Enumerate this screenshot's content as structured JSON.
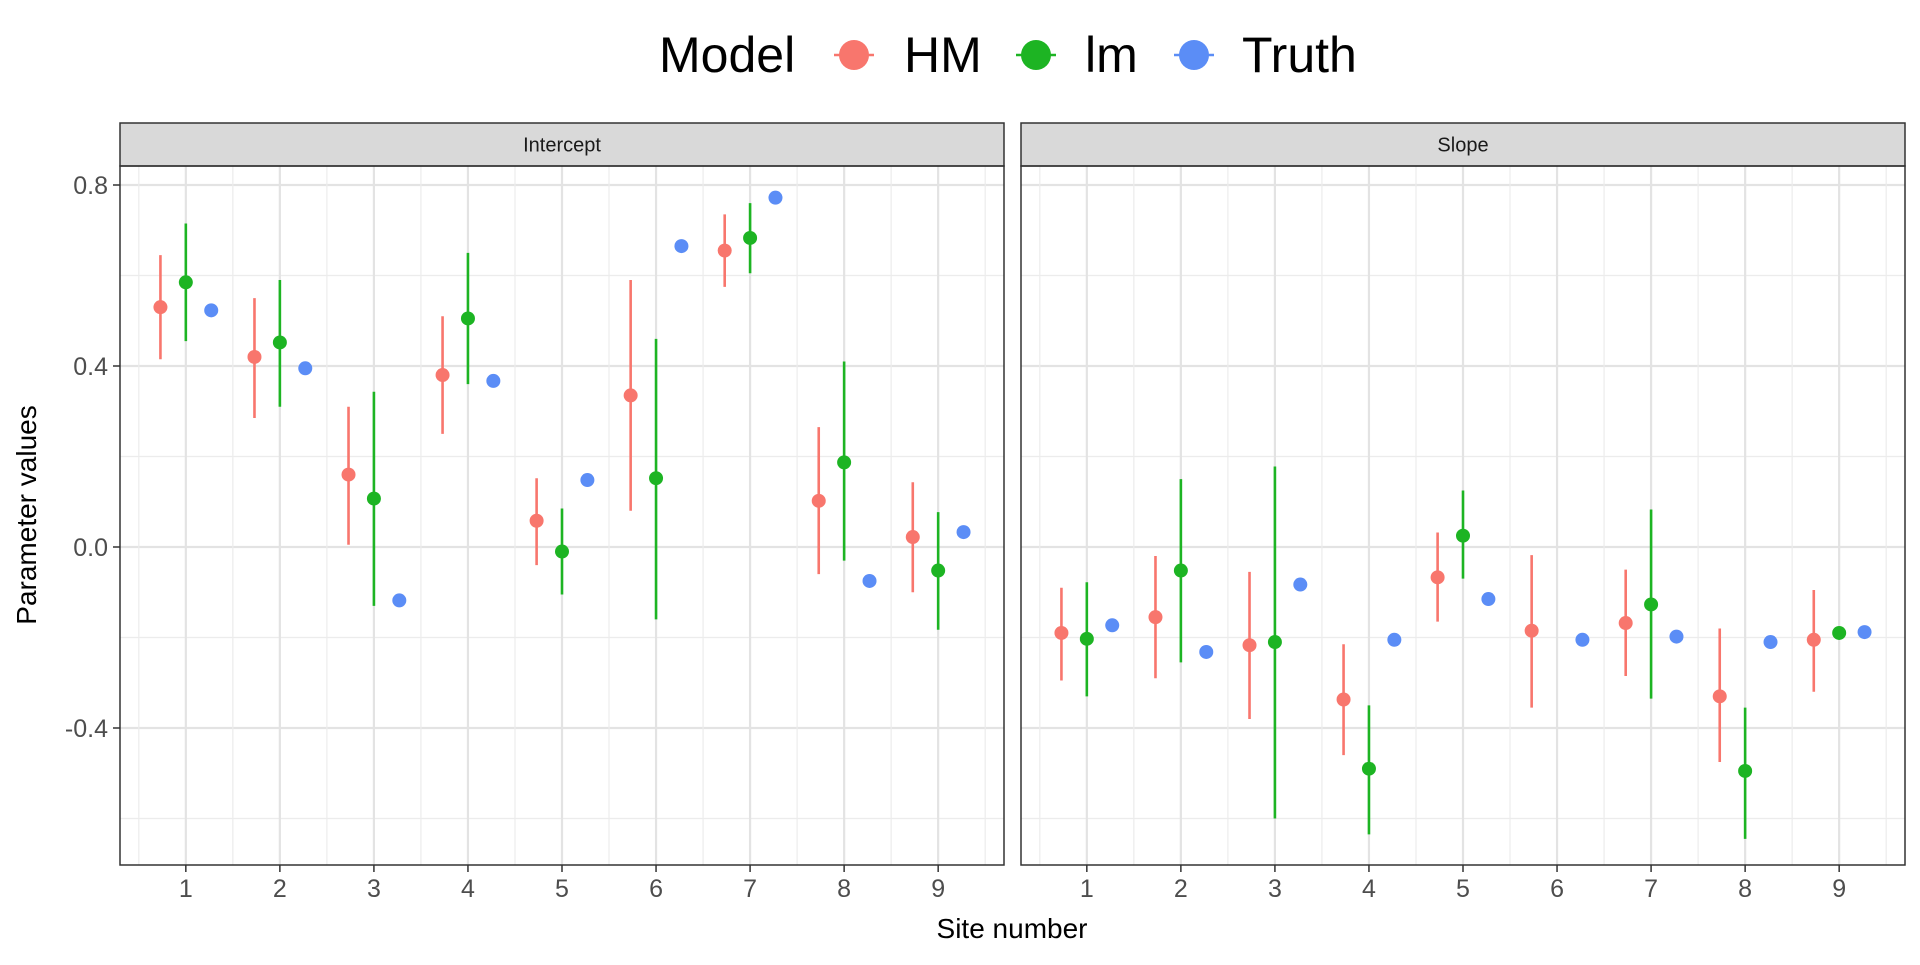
{
  "chart_data": {
    "type": "scatter",
    "subtype": "pointrange-facet",
    "title": "",
    "xlabel": "Site number",
    "ylabel": "Parameter values",
    "legend": {
      "title": "Model",
      "position": "top",
      "entries": [
        "HM",
        "lm",
        "Truth"
      ]
    },
    "colors": {
      "HM": "#F8766D",
      "lm": "#1DB423",
      "Truth": "#5B8DF6"
    },
    "x_ticks": [
      "1",
      "2",
      "3",
      "4",
      "5",
      "6",
      "7",
      "8",
      "9"
    ],
    "y_ticks": [
      "0.8",
      "0.4",
      "0.0",
      "-0.4"
    ],
    "ylim": [
      -0.7,
      0.86
    ],
    "grid": true,
    "facets": [
      {
        "label": "Intercept",
        "series": [
          {
            "name": "HM",
            "points": [
              {
                "site": 1,
                "y": 0.53,
                "lo": 0.415,
                "hi": 0.645
              },
              {
                "site": 2,
                "y": 0.42,
                "lo": 0.285,
                "hi": 0.55
              },
              {
                "site": 3,
                "y": 0.16,
                "lo": 0.005,
                "hi": 0.31
              },
              {
                "site": 4,
                "y": 0.38,
                "lo": 0.25,
                "hi": 0.51
              },
              {
                "site": 5,
                "y": 0.058,
                "lo": -0.04,
                "hi": 0.152
              },
              {
                "site": 6,
                "y": 0.335,
                "lo": 0.08,
                "hi": 0.59
              },
              {
                "site": 7,
                "y": 0.655,
                "lo": 0.575,
                "hi": 0.735
              },
              {
                "site": 8,
                "y": 0.102,
                "lo": -0.06,
                "hi": 0.265
              },
              {
                "site": 9,
                "y": 0.022,
                "lo": -0.1,
                "hi": 0.143
              }
            ]
          },
          {
            "name": "lm",
            "points": [
              {
                "site": 1,
                "y": 0.585,
                "lo": 0.455,
                "hi": 0.715
              },
              {
                "site": 2,
                "y": 0.452,
                "lo": 0.31,
                "hi": 0.59
              },
              {
                "site": 3,
                "y": 0.107,
                "lo": -0.13,
                "hi": 0.343
              },
              {
                "site": 4,
                "y": 0.505,
                "lo": 0.36,
                "hi": 0.65
              },
              {
                "site": 5,
                "y": -0.01,
                "lo": -0.105,
                "hi": 0.085
              },
              {
                "site": 6,
                "y": 0.152,
                "lo": -0.16,
                "hi": 0.46
              },
              {
                "site": 7,
                "y": 0.683,
                "lo": 0.605,
                "hi": 0.76
              },
              {
                "site": 8,
                "y": 0.187,
                "lo": -0.03,
                "hi": 0.41
              },
              {
                "site": 9,
                "y": -0.052,
                "lo": -0.183,
                "hi": 0.077
              }
            ]
          },
          {
            "name": "Truth",
            "points": [
              {
                "site": 1,
                "y": 0.523
              },
              {
                "site": 2,
                "y": 0.395
              },
              {
                "site": 3,
                "y": -0.118
              },
              {
                "site": 4,
                "y": 0.367
              },
              {
                "site": 5,
                "y": 0.148
              },
              {
                "site": 6,
                "y": 0.665
              },
              {
                "site": 7,
                "y": 0.772
              },
              {
                "site": 8,
                "y": -0.075
              },
              {
                "site": 9,
                "y": 0.033
              }
            ]
          }
        ]
      },
      {
        "label": "Slope",
        "series": [
          {
            "name": "HM",
            "points": [
              {
                "site": 1,
                "y": -0.19,
                "lo": -0.295,
                "hi": -0.09
              },
              {
                "site": 2,
                "y": -0.155,
                "lo": -0.29,
                "hi": -0.02
              },
              {
                "site": 3,
                "y": -0.217,
                "lo": -0.38,
                "hi": -0.055
              },
              {
                "site": 4,
                "y": -0.337,
                "lo": -0.46,
                "hi": -0.215
              },
              {
                "site": 5,
                "y": -0.067,
                "lo": -0.165,
                "hi": 0.032
              },
              {
                "site": 6,
                "y": -0.185,
                "lo": -0.355,
                "hi": -0.018
              },
              {
                "site": 7,
                "y": -0.168,
                "lo": -0.285,
                "hi": -0.05
              },
              {
                "site": 8,
                "y": -0.33,
                "lo": -0.475,
                "hi": -0.18
              },
              {
                "site": 9,
                "y": -0.205,
                "lo": -0.32,
                "hi": -0.095
              }
            ]
          },
          {
            "name": "lm",
            "points": [
              {
                "site": 1,
                "y": -0.203,
                "lo": -0.33,
                "hi": -0.078
              },
              {
                "site": 2,
                "y": -0.052,
                "lo": -0.255,
                "hi": 0.15
              },
              {
                "site": 3,
                "y": -0.21,
                "lo": -0.6,
                "hi": 0.178
              },
              {
                "site": 4,
                "y": -0.49,
                "lo": -0.635,
                "hi": -0.35
              },
              {
                "site": 5,
                "y": 0.025,
                "lo": -0.07,
                "hi": 0.125
              },
              {
                "site": 7,
                "y": -0.127,
                "lo": -0.335,
                "hi": 0.083
              },
              {
                "site": 8,
                "y": -0.495,
                "lo": -0.645,
                "hi": -0.355
              },
              {
                "site": 9,
                "y": -0.19
              }
            ]
          },
          {
            "name": "Truth",
            "points": [
              {
                "site": 1,
                "y": -0.173
              },
              {
                "site": 2,
                "y": -0.232
              },
              {
                "site": 3,
                "y": -0.083
              },
              {
                "site": 4,
                "y": -0.205
              },
              {
                "site": 5,
                "y": -0.115
              },
              {
                "site": 6,
                "y": -0.205
              },
              {
                "site": 7,
                "y": -0.198
              },
              {
                "site": 8,
                "y": -0.21
              },
              {
                "site": 9,
                "y": -0.188
              }
            ]
          }
        ]
      }
    ]
  }
}
